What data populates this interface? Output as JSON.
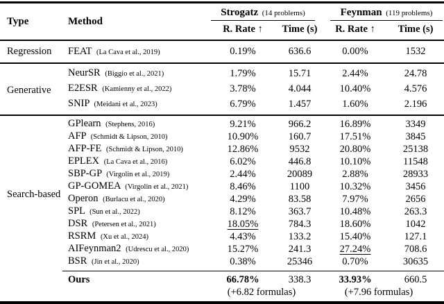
{
  "header": {
    "type_label": "Type",
    "method_label": "Method",
    "strogatz": {
      "name": "Strogatz",
      "count": "(14 problems)"
    },
    "feynman": {
      "name": "Feynman",
      "count": "(119 problems)"
    },
    "rrate_label": "R. Rate ↑",
    "time_label": "Time (s)"
  },
  "sections": [
    {
      "type": "Regression",
      "rows": [
        {
          "method": "FEAT",
          "cite": "(La Cava et al., 2019)",
          "rrate_s": "0.19%",
          "time_s": "636.6",
          "rrate_f": "0.00%",
          "time_f": "1532"
        }
      ]
    },
    {
      "type": "Generative",
      "rows": [
        {
          "method": "NeurSR",
          "cite": "(Biggio et al., 2021)",
          "rrate_s": "1.79%",
          "time_s": "15.71",
          "rrate_f": "2.44%",
          "time_f": "24.78"
        },
        {
          "method": "E2ESR",
          "cite": "(Kamienny et al., 2022)",
          "rrate_s": "3.78%",
          "time_s": "4.044",
          "rrate_f": "10.40%",
          "time_f": "4.576"
        },
        {
          "method": "SNIP",
          "cite": "(Meidani et al., 2023)",
          "rrate_s": "6.79%",
          "time_s": "1.457",
          "rrate_f": "1.60%",
          "time_f": "2.196"
        }
      ]
    },
    {
      "type": "Search-based",
      "rows": [
        {
          "method": "GPlearn",
          "cite": "(Stephens, 2016)",
          "rrate_s": "9.21%",
          "time_s": "966.2",
          "rrate_f": "16.89%",
          "time_f": "3349"
        },
        {
          "method": "AFP",
          "cite": "(Schmidt & Lipson, 2010)",
          "rrate_s": "10.90%",
          "time_s": "160.7",
          "rrate_f": "17.51%",
          "time_f": "3845"
        },
        {
          "method": "AFP-FE",
          "cite": "(Schmidt & Lipson, 2010)",
          "rrate_s": "12.86%",
          "time_s": "9532",
          "rrate_f": "20.80%",
          "time_f": "25138"
        },
        {
          "method": "EPLEX",
          "cite": "(La Cava et al., 2016)",
          "rrate_s": "6.02%",
          "time_s": "446.8",
          "rrate_f": "10.10%",
          "time_f": "11548"
        },
        {
          "method": "SBP-GP",
          "cite": "(Virgolin et al., 2019)",
          "rrate_s": "2.44%",
          "time_s": "20089",
          "rrate_f": "2.88%",
          "time_f": "28933"
        },
        {
          "method": "GP-GOMEA",
          "cite": "(Virgolin et al., 2021)",
          "rrate_s": "8.46%",
          "time_s": "1100",
          "rrate_f": "10.32%",
          "time_f": "3456"
        },
        {
          "method": "Operon",
          "cite": "(Burlacu et al., 2020)",
          "rrate_s": "4.29%",
          "time_s": "83.58",
          "rrate_f": "7.97%",
          "time_f": "2656"
        },
        {
          "method": "SPL",
          "cite": "(Sun et al., 2022)",
          "rrate_s": "8.12%",
          "time_s": "363.7",
          "rrate_f": "10.48%",
          "time_f": "263.3"
        },
        {
          "method": "DSR",
          "cite": "(Petersen et al., 2021)",
          "rrate_s": "18.05%",
          "time_s": "784.3",
          "rrate_f": "18.60%",
          "time_f": "1042"
        },
        {
          "method": "RSRM",
          "cite": "(Xu et al., 2024)",
          "rrate_s": "4.43%",
          "time_s": "133.2",
          "rrate_f": "15.40%",
          "time_f": "127.1"
        },
        {
          "method": "AIFeynman2",
          "cite": "(Udrescu et al., 2020)",
          "rrate_s": "15.27%",
          "time_s": "241.3",
          "rrate_f": "27.24%",
          "time_f": "708.6"
        },
        {
          "method": "BSR",
          "cite": "(Jin et al., 2020)",
          "rrate_s": "0.38%",
          "time_s": "25346",
          "rrate_f": "0.70%",
          "time_f": "30635"
        }
      ]
    }
  ],
  "ours": {
    "label": "Ours",
    "rrate_s": "66.78%",
    "time_s": "338.3",
    "formulas_s": "(+6.82 formulas)",
    "rrate_f": "33.93%",
    "time_f": "660.5",
    "formulas_f": "(+7.96 formulas)"
  }
}
